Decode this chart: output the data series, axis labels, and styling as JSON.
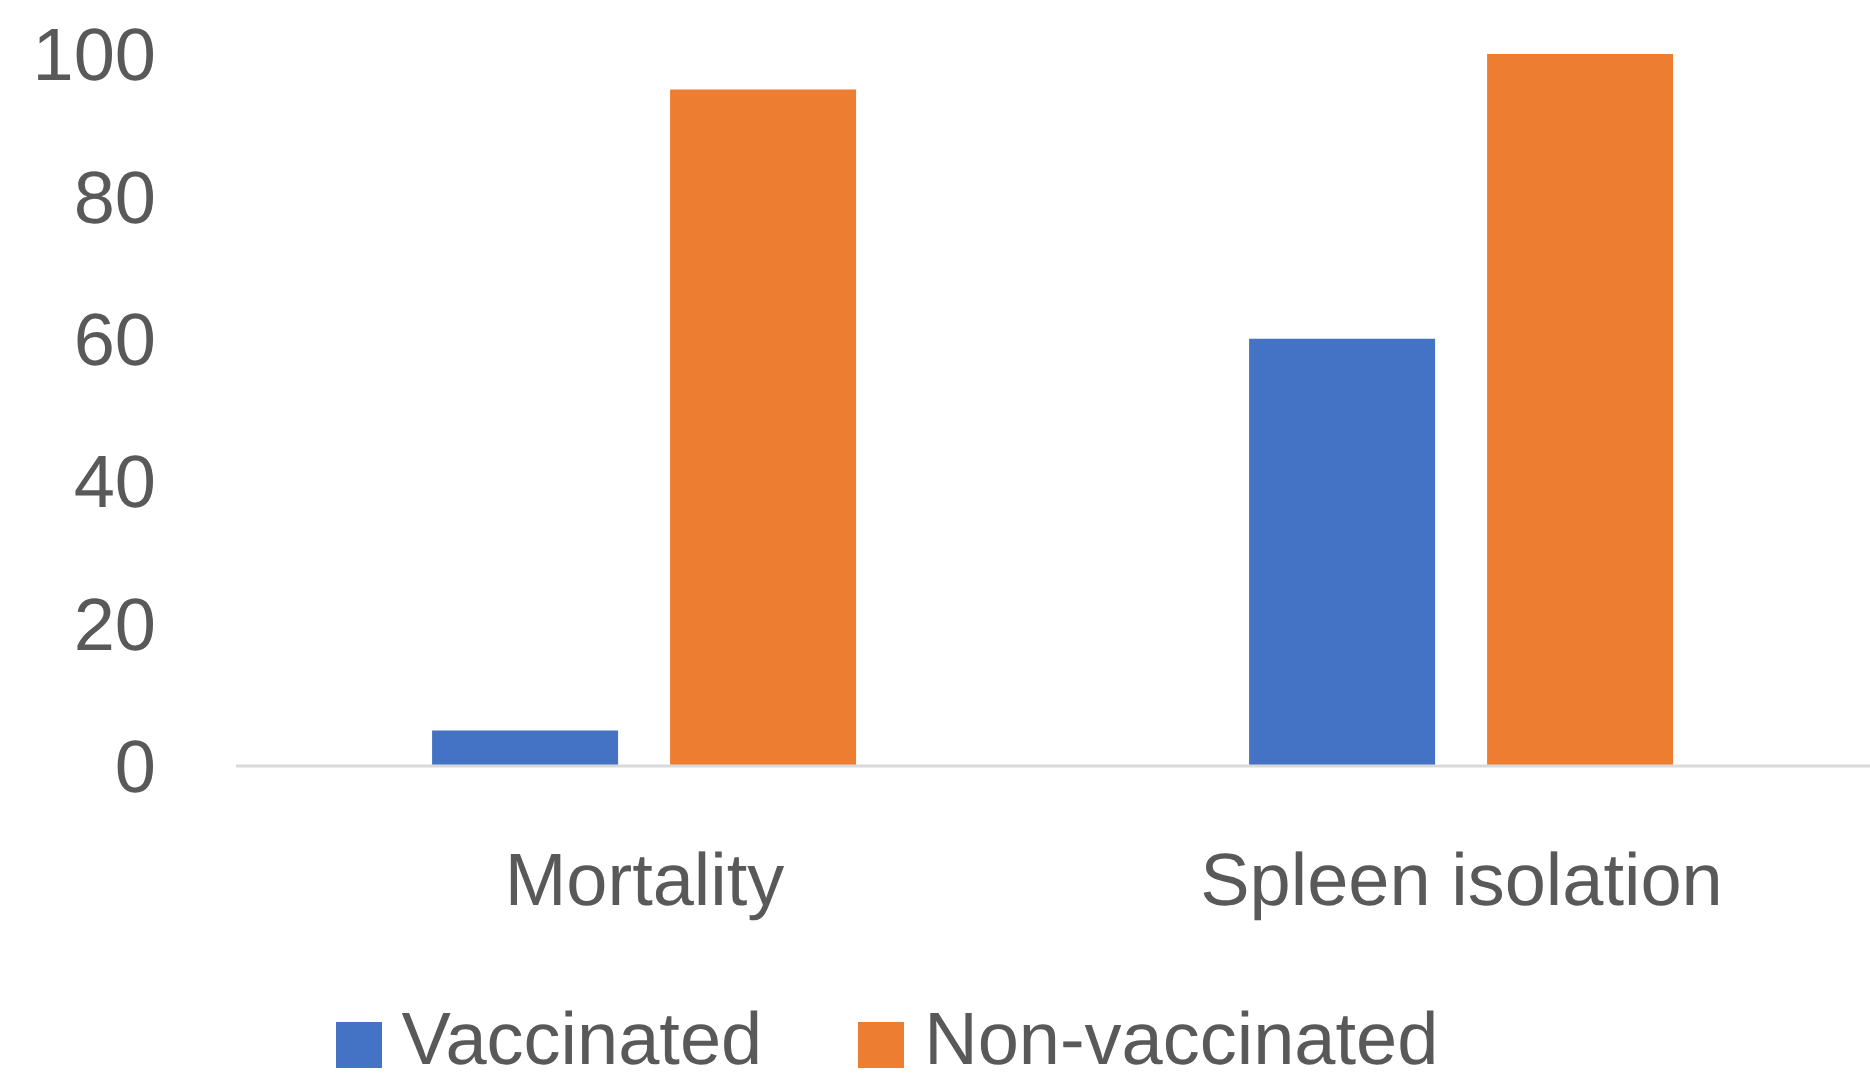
{
  "chart_data": {
    "type": "bar",
    "categories": [
      "Mortality",
      "Spleen isolation"
    ],
    "series": [
      {
        "name": "Vaccinated",
        "color": "#4472c4",
        "values": [
          5,
          60
        ]
      },
      {
        "name": "Non-vaccinated",
        "color": "#ed7d31",
        "values": [
          95,
          100
        ]
      }
    ],
    "ylim": [
      0,
      100
    ],
    "yticks": [
      0,
      20,
      40,
      60,
      80,
      100
    ],
    "legend": "bottom"
  }
}
